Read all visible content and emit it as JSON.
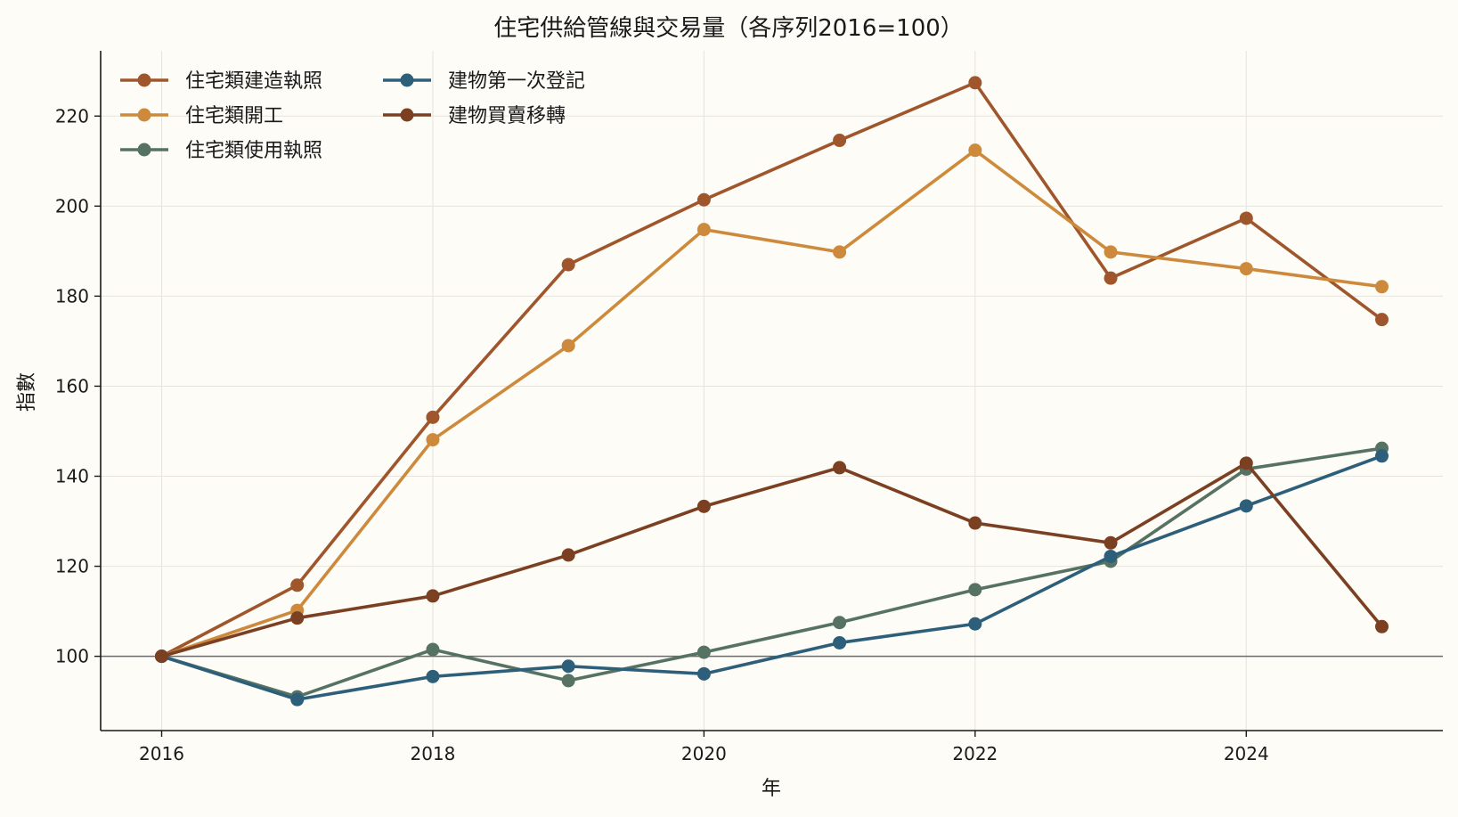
{
  "chart_data": {
    "type": "line",
    "title": "住宅供給管線與交易量（各序列2016=100）",
    "xlabel": "年",
    "ylabel": "指數",
    "x": [
      2016,
      2017,
      2018,
      2019,
      2020,
      2021,
      2022,
      2023,
      2024,
      2025
    ],
    "x_ticks": [
      2016,
      2018,
      2020,
      2022,
      2024
    ],
    "y_ticks": [
      100,
      120,
      140,
      160,
      180,
      200,
      220
    ],
    "xlim": [
      2015.55,
      2025.45
    ],
    "ylim": [
      83.5,
      234.5
    ],
    "reference_line": 100,
    "grid": true,
    "legend_placement": "top-left",
    "series": [
      {
        "name": "住宅類建造執照",
        "color": "#a0562c",
        "values": [
          100,
          115.8,
          153.1,
          187.0,
          201.4,
          214.6,
          227.4,
          184.0,
          197.3,
          174.8
        ]
      },
      {
        "name": "住宅類開工",
        "color": "#cd8a3c",
        "values": [
          100,
          110.2,
          148.1,
          169.0,
          194.8,
          189.8,
          212.4,
          189.8,
          186.1,
          182.1
        ]
      },
      {
        "name": "住宅類使用執照",
        "color": "#567263",
        "values": [
          100,
          91.0,
          101.5,
          94.6,
          100.9,
          107.5,
          114.8,
          121.1,
          141.6,
          146.2
        ]
      },
      {
        "name": "建物第一次登記",
        "color": "#2e5f7a",
        "values": [
          100,
          90.4,
          95.5,
          97.8,
          96.1,
          103.0,
          107.2,
          122.2,
          133.4,
          144.5
        ]
      },
      {
        "name": "建物買賣移轉",
        "color": "#7b3f22",
        "values": [
          100,
          108.5,
          113.4,
          122.5,
          133.3,
          141.9,
          129.6,
          125.2,
          142.9,
          106.6
        ]
      }
    ]
  }
}
